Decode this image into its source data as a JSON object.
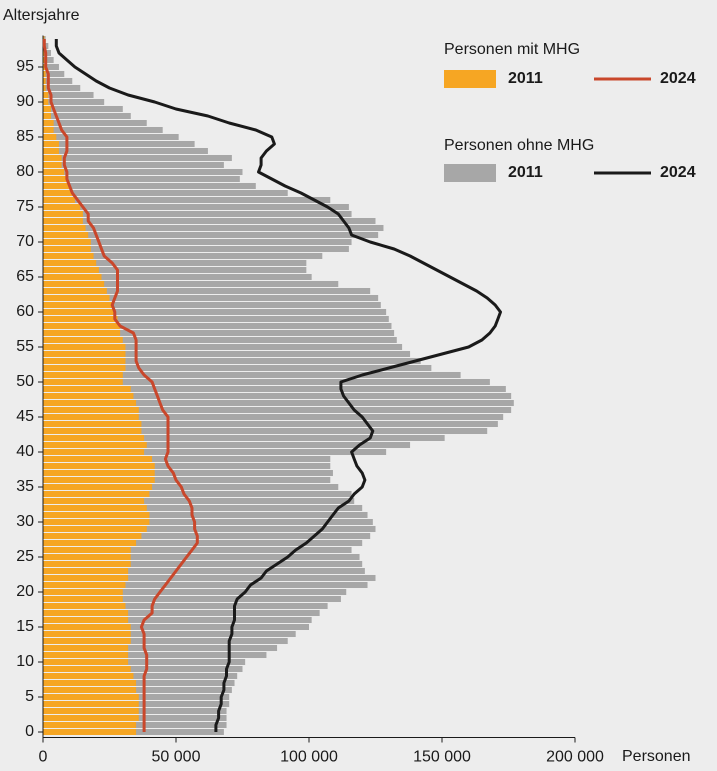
{
  "chart_data": {
    "type": "hbar-lines",
    "ylabel": "Altersjahre",
    "xlabel": "Personen",
    "xlim": [
      0,
      200000
    ],
    "xticks": [
      0,
      {
        "value": 50000,
        "label": "50 000"
      },
      {
        "value": 100000,
        "label": "100 000"
      },
      {
        "value": 150000,
        "label": "150 000"
      },
      {
        "value": 200000,
        "label": "200 000"
      }
    ],
    "ylim": [
      -0.5,
      99.5
    ],
    "yticks": [
      0,
      5,
      10,
      15,
      20,
      25,
      30,
      35,
      40,
      45,
      50,
      55,
      60,
      65,
      70,
      75,
      80,
      85,
      90,
      95
    ],
    "y": [
      0,
      1,
      2,
      3,
      4,
      5,
      6,
      7,
      8,
      9,
      10,
      11,
      12,
      13,
      14,
      15,
      16,
      17,
      18,
      19,
      20,
      21,
      22,
      23,
      24,
      25,
      26,
      27,
      28,
      29,
      30,
      31,
      32,
      33,
      34,
      35,
      36,
      37,
      38,
      39,
      40,
      41,
      42,
      43,
      44,
      45,
      46,
      47,
      48,
      49,
      50,
      51,
      52,
      53,
      54,
      55,
      56,
      57,
      58,
      59,
      60,
      61,
      62,
      63,
      64,
      65,
      66,
      67,
      68,
      69,
      70,
      71,
      72,
      73,
      74,
      75,
      76,
      77,
      78,
      79,
      80,
      81,
      82,
      83,
      84,
      85,
      86,
      87,
      88,
      89,
      90,
      91,
      92,
      93,
      94,
      95,
      96,
      97,
      98,
      99
    ],
    "series": [
      {
        "name": "2011",
        "group": "Personen mit MHG",
        "mark": "bar",
        "color": "#f6a623",
        "values": [
          35000,
          35000,
          36000,
          36000,
          36000,
          36000,
          35000,
          35000,
          34000,
          33000,
          32000,
          32000,
          32000,
          33000,
          33000,
          33000,
          32000,
          32000,
          31000,
          30000,
          30000,
          31000,
          32000,
          32000,
          33000,
          33000,
          33000,
          35000,
          37000,
          39000,
          40000,
          40000,
          39000,
          38000,
          40000,
          41000,
          42000,
          42000,
          42000,
          41000,
          38000,
          39000,
          38000,
          37000,
          37000,
          36000,
          36000,
          35000,
          34000,
          33000,
          30000,
          30000,
          31000,
          31000,
          31000,
          31000,
          30000,
          29000,
          29000,
          28000,
          27000,
          26000,
          25000,
          24000,
          23000,
          22000,
          21000,
          20000,
          19000,
          18000,
          18000,
          17000,
          16000,
          15000,
          15000,
          14000,
          12000,
          11000,
          10000,
          9000,
          8000,
          7000,
          7000,
          6000,
          6000,
          5000,
          4000,
          4000,
          3000,
          3000,
          2000,
          2000,
          1000,
          1000,
          1000,
          1000,
          1000,
          500,
          500,
          500
        ]
      },
      {
        "name": "2024",
        "group": "Personen mit MHG",
        "mark": "line",
        "color": "#c9472b",
        "values": [
          38000,
          38000,
          38000,
          38000,
          38000,
          38000,
          38000,
          38000,
          38000,
          39000,
          39000,
          39000,
          38000,
          38000,
          38000,
          37000,
          38000,
          41000,
          41000,
          42000,
          44000,
          46000,
          48000,
          50000,
          52000,
          54000,
          56000,
          58000,
          58000,
          57000,
          57000,
          56000,
          56000,
          55000,
          53000,
          52000,
          50000,
          49000,
          47000,
          46000,
          47000,
          47000,
          47000,
          47000,
          47000,
          47000,
          45000,
          44000,
          43000,
          42000,
          41000,
          38000,
          36000,
          35000,
          35000,
          35000,
          35000,
          34000,
          29000,
          27000,
          27000,
          26000,
          27000,
          28000,
          28000,
          28000,
          28000,
          26000,
          23000,
          22000,
          21000,
          20000,
          19000,
          17000,
          17000,
          15000,
          13000,
          11000,
          10000,
          9000,
          9000,
          8000,
          8000,
          9000,
          9000,
          9000,
          7000,
          6000,
          5000,
          4000,
          3000,
          3000,
          2000,
          2000,
          2000,
          1000,
          1000,
          1000,
          500,
          500
        ]
      },
      {
        "name": "2011",
        "group": "Personen ohne MHG",
        "mark": "bar",
        "color": "#a7a7a7",
        "values": [
          68000,
          69000,
          69000,
          69000,
          70000,
          70000,
          71000,
          72000,
          73000,
          75000,
          76000,
          84000,
          88000,
          92000,
          95000,
          100000,
          101000,
          104000,
          107000,
          112000,
          114000,
          122000,
          125000,
          121000,
          120000,
          119000,
          116000,
          120000,
          123000,
          125000,
          124000,
          122000,
          120000,
          117000,
          116000,
          111000,
          108000,
          109000,
          108000,
          108000,
          129000,
          138000,
          151000,
          167000,
          171000,
          173000,
          176000,
          177000,
          176000,
          174000,
          168000,
          157000,
          146000,
          142000,
          138000,
          135000,
          133000,
          132000,
          131000,
          130000,
          129000,
          127000,
          126000,
          123000,
          111000,
          101000,
          99000,
          99000,
          105000,
          115000,
          116000,
          126000,
          128000,
          125000,
          116000,
          115000,
          108000,
          92000,
          80000,
          74000,
          75000,
          68000,
          71000,
          62000,
          57000,
          51000,
          45000,
          39000,
          33000,
          30000,
          23000,
          19000,
          14000,
          11000,
          8000,
          6000,
          4000,
          3000,
          2000,
          1000
        ]
      },
      {
        "name": "2024",
        "group": "Personen ohne MHG",
        "mark": "line",
        "color": "#1a1a1a",
        "values": [
          65000,
          65000,
          66000,
          66000,
          67000,
          67000,
          68000,
          68000,
          69000,
          69000,
          70000,
          70000,
          70000,
          70000,
          71000,
          71000,
          72000,
          72000,
          72000,
          73000,
          76000,
          78000,
          82000,
          84000,
          88000,
          92000,
          95000,
          99000,
          102000,
          105000,
          107000,
          109000,
          111000,
          115000,
          117000,
          120000,
          121000,
          120000,
          118000,
          117000,
          116000,
          119000,
          123000,
          124000,
          122000,
          120000,
          117000,
          115000,
          113000,
          112000,
          112000,
          120000,
          130000,
          140000,
          150000,
          160000,
          165000,
          168000,
          170000,
          171000,
          172000,
          170000,
          167000,
          163000,
          158000,
          153000,
          148000,
          143000,
          138000,
          132000,
          123000,
          116000,
          115000,
          113000,
          111000,
          107000,
          102000,
          97000,
          91000,
          86000,
          81000,
          82000,
          82000,
          84000,
          87000,
          86000,
          80000,
          70000,
          62000,
          50000,
          42000,
          32000,
          25000,
          20000,
          16000,
          12000,
          9000,
          6000,
          5000,
          5000
        ]
      }
    ]
  }
}
